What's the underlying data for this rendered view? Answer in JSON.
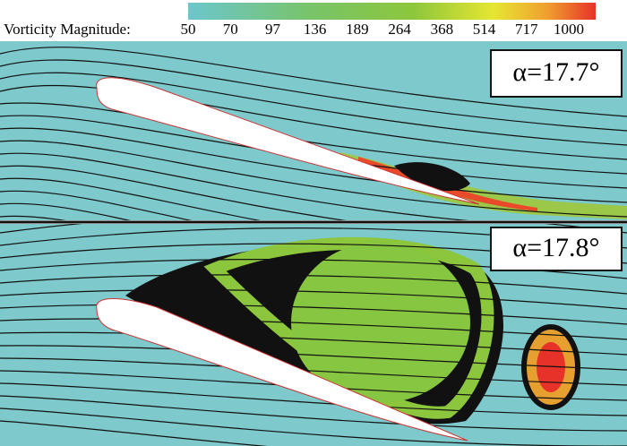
{
  "colorbar": {
    "title": "Vorticity Magnitude:",
    "ticks": [
      "50",
      "70",
      "97",
      "136",
      "189",
      "264",
      "368",
      "514",
      "717",
      "1000"
    ]
  },
  "panels": [
    {
      "label": "α=17.7°"
    },
    {
      "label": "α=17.8°"
    }
  ]
}
